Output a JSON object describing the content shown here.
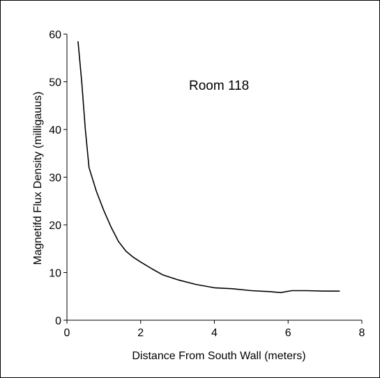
{
  "chart_data": {
    "type": "line",
    "annotation": "Room 118",
    "xlabel": "Distance From South Wall (meters)",
    "ylabel": "Magnetifd Flux Density (milligauus)",
    "xlim": [
      0,
      8
    ],
    "ylim": [
      0,
      60
    ],
    "xticks": [
      0,
      2,
      4,
      6,
      8
    ],
    "yticks": [
      0,
      10,
      20,
      30,
      40,
      50,
      60
    ],
    "grid": false,
    "series": [
      {
        "color": "#000000",
        "x": [
          0.3,
          0.4,
          0.5,
          0.6,
          0.8,
          1.0,
          1.2,
          1.4,
          1.6,
          1.8,
          2.0,
          2.3,
          2.6,
          3.0,
          3.5,
          4.0,
          4.5,
          5.0,
          5.5,
          5.8,
          6.1,
          6.5,
          7.0,
          7.4
        ],
        "y": [
          58.5,
          50,
          40,
          32,
          27,
          23,
          19.5,
          16.5,
          14.5,
          13.2,
          12.2,
          10.8,
          9.5,
          8.5,
          7.5,
          6.8,
          6.6,
          6.2,
          6.0,
          5.8,
          6.2,
          6.2,
          6.1,
          6.1
        ]
      }
    ]
  }
}
